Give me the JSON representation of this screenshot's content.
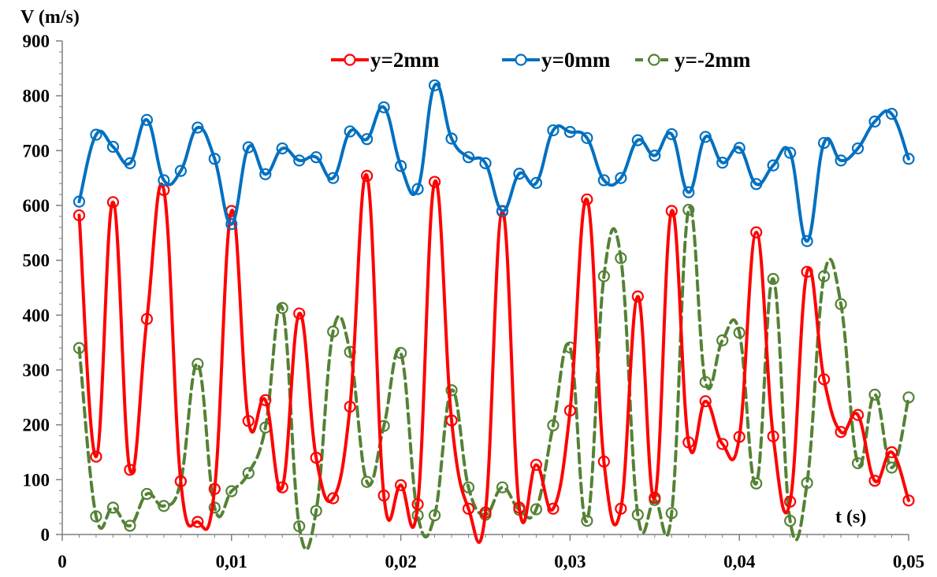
{
  "chart_data": {
    "type": "line",
    "ylabel": "V (m/s)",
    "xlabel": "t (s)",
    "xlim": [
      0,
      0.05
    ],
    "ylim": [
      0,
      900
    ],
    "x_ticks": [
      0,
      0.01,
      0.02,
      0.03,
      0.04,
      0.05
    ],
    "x_tick_labels": [
      "0",
      "0,01",
      "0,02",
      "0,03",
      "0,04",
      "0,05"
    ],
    "y_ticks": [
      0,
      100,
      200,
      300,
      400,
      500,
      600,
      700,
      800,
      900
    ],
    "y_tick_labels": [
      "0",
      "100",
      "200",
      "300",
      "400",
      "500",
      "600",
      "700",
      "800",
      "900"
    ],
    "grid": false,
    "legend_position": "top-right",
    "x": [
      0.001,
      0.002,
      0.003,
      0.004,
      0.005,
      0.006,
      0.007,
      0.008,
      0.009,
      0.01,
      0.011,
      0.012,
      0.013,
      0.014,
      0.015,
      0.016,
      0.017,
      0.018,
      0.019,
      0.02,
      0.021,
      0.022,
      0.023,
      0.024,
      0.025,
      0.026,
      0.027,
      0.028,
      0.029,
      0.03,
      0.031,
      0.032,
      0.033,
      0.034,
      0.035,
      0.036,
      0.037,
      0.038,
      0.039,
      0.04,
      0.041,
      0.042,
      0.043,
      0.044,
      0.045,
      0.046,
      0.047,
      0.048,
      0.049,
      0.05
    ],
    "series": [
      {
        "name": "y=2mm",
        "color": "#ff0000",
        "dashed": false,
        "values": [
          582,
          142,
          606,
          118,
          393,
          628,
          97,
          23,
          83,
          590,
          207,
          245,
          86,
          403,
          140,
          66,
          233,
          654,
          71,
          90,
          55,
          643,
          208,
          47,
          40,
          589,
          49,
          127,
          47,
          226,
          611,
          133,
          47,
          434,
          67,
          590,
          168,
          243,
          165,
          178,
          551,
          179,
          60,
          479,
          283,
          187,
          218,
          98,
          150,
          62
        ]
      },
      {
        "name": "y=0mm",
        "color": "#0070c0",
        "dashed": false,
        "values": [
          607,
          729,
          707,
          677,
          756,
          646,
          663,
          742,
          685,
          566,
          706,
          657,
          704,
          682,
          688,
          650,
          735,
          721,
          779,
          672,
          630,
          819,
          722,
          688,
          677,
          590,
          658,
          641,
          737,
          734,
          723,
          646,
          650,
          719,
          691,
          730,
          624,
          725,
          678,
          705,
          639,
          673,
          696,
          535,
          714,
          682,
          704,
          753,
          767,
          685
        ]
      },
      {
        "name": "y=-2mm",
        "color": "#548235",
        "dashed": true,
        "values": [
          340,
          33,
          49,
          16,
          74,
          52,
          97,
          311,
          49,
          79,
          112,
          195,
          413,
          15,
          43,
          370,
          333,
          96,
          198,
          331,
          35,
          35,
          263,
          86,
          36,
          86,
          45,
          46,
          199,
          341,
          25,
          471,
          504,
          36,
          63,
          39,
          592,
          278,
          354,
          368,
          93,
          466,
          25,
          94,
          471,
          420,
          130,
          255,
          122,
          250
        ]
      }
    ]
  }
}
